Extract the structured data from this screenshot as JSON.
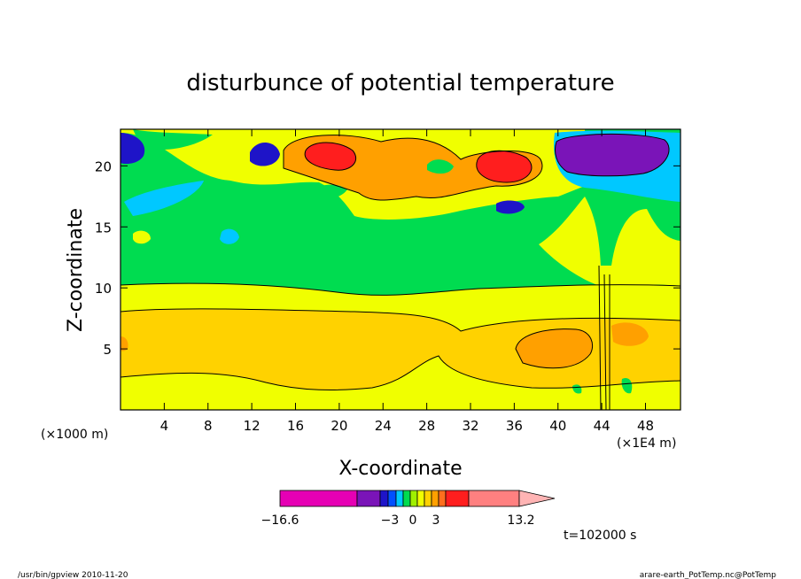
{
  "chart_data": {
    "type": "heatmap",
    "title": "disturbunce of potential temperature",
    "xlabel": "X-coordinate",
    "ylabel": "Z-coordinate",
    "x_unit_left": "(×1000 m)",
    "x_unit_right": "(×1E4 m)",
    "xlim": [
      0,
      51.2
    ],
    "ylim": [
      0,
      23
    ],
    "x_ticks": [
      4,
      8,
      12,
      16,
      20,
      24,
      28,
      32,
      36,
      40,
      44,
      48
    ],
    "y_ticks": [
      5,
      10,
      15,
      20
    ],
    "colorbar": {
      "min_label": "−16.6",
      "max_label": "13.2",
      "tick_labels": [
        "−3",
        "0",
        "3"
      ],
      "colors": [
        "#e600b4",
        "#7a14b8",
        "#1e14c8",
        "#0050ff",
        "#00c8ff",
        "#00dc50",
        "#a0f000",
        "#f0ff00",
        "#ffd200",
        "#ffa000",
        "#ff6e1e",
        "#ff1e1e",
        "#ff8080",
        "#ffb4b4"
      ]
    },
    "time_label": "t=102000 s"
  },
  "footer": {
    "left": "/usr/bin/gpview   2010-11-20",
    "right": "arare-earth_PotTemp.nc@PotTemp"
  }
}
